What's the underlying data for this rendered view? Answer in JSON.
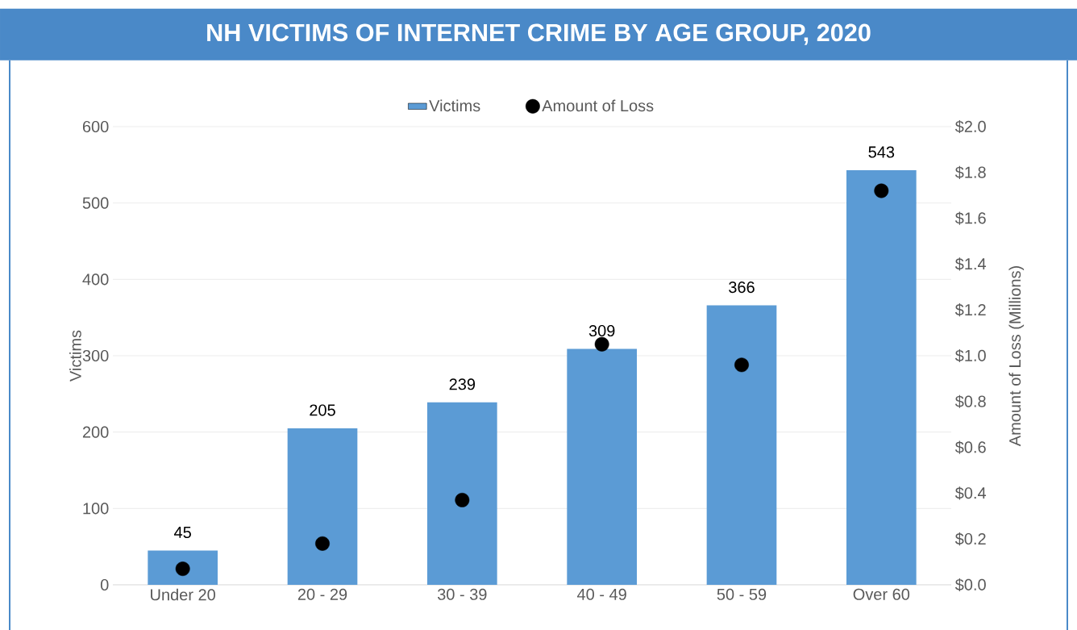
{
  "chart_data": {
    "type": "bar",
    "title": "NH VICTIMS OF INTERNET CRIME BY AGE GROUP, 2020",
    "ylabel": "Victims",
    "y2label": "Amount of Loss (Millions)",
    "categories": [
      "Under 20",
      "20 - 29",
      "30 - 39",
      "40 - 49",
      "50 - 59",
      "Over 60"
    ],
    "series": [
      {
        "name": "Victims",
        "color": "#5b9bd5",
        "values": [
          45,
          205,
          239,
          309,
          366,
          543
        ],
        "value_labels": [
          "45",
          "205",
          "239",
          "309",
          "366",
          "543"
        ]
      },
      {
        "name": "Amount of Loss",
        "type": "scatter",
        "axis": "y2",
        "color": "#000000",
        "values": [
          0.07,
          0.18,
          0.37,
          1.05,
          0.96,
          1.72
        ]
      }
    ],
    "ylim": [
      0,
      600
    ],
    "yticks": [
      0,
      100,
      200,
      300,
      400,
      500,
      600
    ],
    "y2lim": [
      0,
      2.0
    ],
    "y2ticks": [
      {
        "value": 0,
        "label": "$0.0"
      },
      {
        "value": 0.2,
        "label": "$0.2"
      },
      {
        "value": 0.4,
        "label": "$0.4"
      },
      {
        "value": 0.6,
        "label": "$0.6"
      },
      {
        "value": 0.8,
        "label": "$0.8"
      },
      {
        "value": 1.0,
        "label": "$1.0"
      },
      {
        "value": 1.2,
        "label": "$1.2"
      },
      {
        "value": 1.4,
        "label": "$1.4"
      },
      {
        "value": 1.6,
        "label": "$1.6"
      },
      {
        "value": 1.8,
        "label": "$1.8"
      },
      {
        "value": 2.0,
        "label": "$2.0"
      }
    ],
    "grid": "y",
    "legend": "top",
    "marker": "circle"
  }
}
